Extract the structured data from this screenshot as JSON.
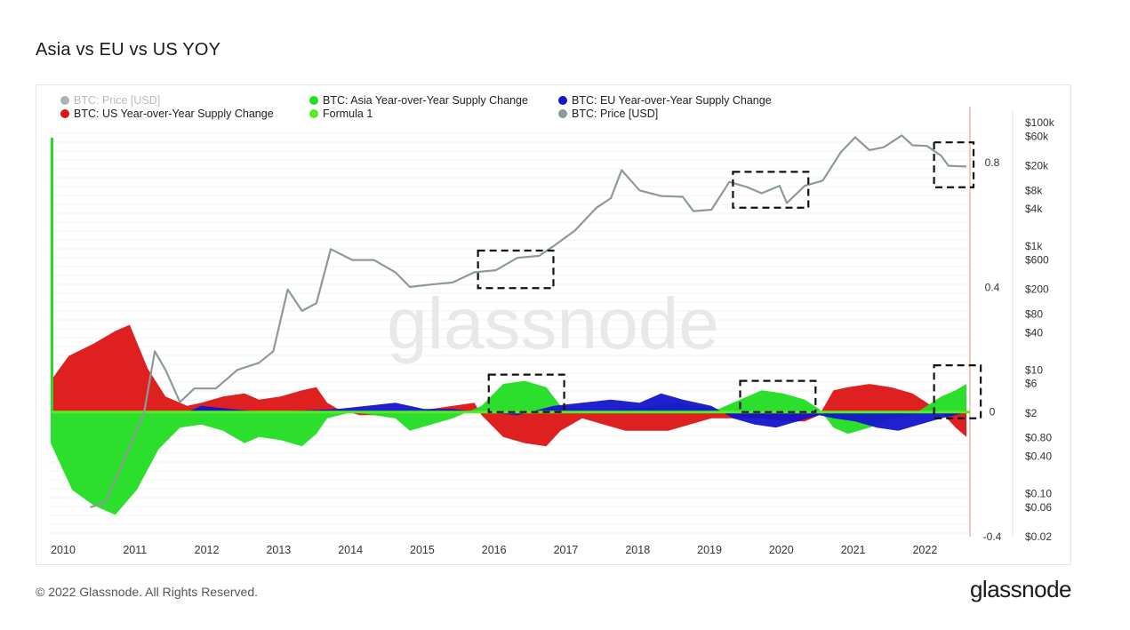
{
  "title": "Asia vs EU vs US YOY",
  "footer": {
    "copyright": "© 2022 Glassnode. All Rights Reserved.",
    "logo": "glassnode"
  },
  "watermark": "glassnode",
  "legend": [
    {
      "label": "BTC: Price [USD]",
      "color": "#aab3b3",
      "muted": true
    },
    {
      "label": "BTC: Asia Year-over-Year Supply Change",
      "color": "#22dd22"
    },
    {
      "label": "BTC: EU Year-over-Year Supply Change",
      "color": "#1414cc"
    },
    {
      "label": "BTC: US Year-over-Year Supply Change",
      "color": "#dd1414"
    },
    {
      "label": "Formula 1",
      "color": "#55ee22"
    },
    {
      "label": "BTC: Price [USD]",
      "color": "#8e9a9a"
    }
  ],
  "chart_data": {
    "type": "area",
    "title": "Asia vs EU vs US YOY",
    "x_ticks": [
      "2010",
      "2011",
      "2012",
      "2013",
      "2014",
      "2015",
      "2016",
      "2017",
      "2018",
      "2019",
      "2020",
      "2021",
      "2022"
    ],
    "x_range": [
      2010.0,
      2022.8
    ],
    "y_left_ticks": [
      {
        "value": 0.8,
        "label": "0.8"
      },
      {
        "value": 0.4,
        "label": "0.4"
      },
      {
        "value": 0,
        "label": "0"
      },
      {
        "value": -0.4,
        "label": "-0.4"
      }
    ],
    "y_left_range": [
      -0.4,
      0.98
    ],
    "y_right_ticks": [
      {
        "value": 100000,
        "label": "$100k"
      },
      {
        "value": 60000,
        "label": "$60k"
      },
      {
        "value": 20000,
        "label": "$20k"
      },
      {
        "value": 8000,
        "label": "$8k"
      },
      {
        "value": 4000,
        "label": "$4k"
      },
      {
        "value": 1000,
        "label": "$1k"
      },
      {
        "value": 600,
        "label": "$600"
      },
      {
        "value": 200,
        "label": "$200"
      },
      {
        "value": 80,
        "label": "$80"
      },
      {
        "value": 40,
        "label": "$40"
      },
      {
        "value": 10,
        "label": "$10"
      },
      {
        "value": 6,
        "label": "$6"
      },
      {
        "value": 2,
        "label": "$2"
      },
      {
        "value": 0.8,
        "label": "$0.80"
      },
      {
        "value": 0.4,
        "label": "$0.40"
      },
      {
        "value": 0.1,
        "label": "$0.10"
      },
      {
        "value": 0.06,
        "label": "$0.06"
      },
      {
        "value": 0.02,
        "label": "$0.02"
      }
    ],
    "y_right_scale": "log",
    "series": [
      {
        "name": "BTC: US Year-over-Year Supply Change",
        "color": "#dd1414",
        "points": [
          [
            2010.0,
            0.1
          ],
          [
            2010.25,
            0.18
          ],
          [
            2010.6,
            0.22
          ],
          [
            2010.9,
            0.26
          ],
          [
            2011.1,
            0.28
          ],
          [
            2011.35,
            0.14
          ],
          [
            2011.6,
            0.05
          ],
          [
            2011.9,
            0.02
          ],
          [
            2012.1,
            0.03
          ],
          [
            2012.4,
            0.05
          ],
          [
            2012.7,
            0.06
          ],
          [
            2012.9,
            0.04
          ],
          [
            2013.2,
            0.05
          ],
          [
            2013.5,
            0.07
          ],
          [
            2013.7,
            0.08
          ],
          [
            2013.85,
            0.03
          ],
          [
            2014.0,
            0.01
          ],
          [
            2014.3,
            -0.01
          ],
          [
            2014.6,
            -0.01
          ],
          [
            2015.0,
            0.0
          ],
          [
            2015.3,
            0.01
          ],
          [
            2015.6,
            0.02
          ],
          [
            2015.9,
            0.03
          ],
          [
            2016.0,
            -0.01
          ],
          [
            2016.3,
            -0.08
          ],
          [
            2016.6,
            -0.1
          ],
          [
            2016.9,
            -0.11
          ],
          [
            2017.1,
            -0.06
          ],
          [
            2017.4,
            -0.02
          ],
          [
            2017.7,
            -0.04
          ],
          [
            2018.0,
            -0.06
          ],
          [
            2018.3,
            -0.06
          ],
          [
            2018.6,
            -0.06
          ],
          [
            2018.9,
            -0.04
          ],
          [
            2019.2,
            -0.02
          ],
          [
            2019.6,
            -0.02
          ],
          [
            2019.9,
            -0.02
          ],
          [
            2020.2,
            -0.03
          ],
          [
            2020.5,
            -0.03
          ],
          [
            2020.7,
            -0.01
          ],
          [
            2020.9,
            0.07
          ],
          [
            2021.1,
            0.08
          ],
          [
            2021.4,
            0.09
          ],
          [
            2021.7,
            0.08
          ],
          [
            2022.0,
            0.06
          ],
          [
            2022.2,
            0.03
          ],
          [
            2022.4,
            0.0
          ],
          [
            2022.6,
            -0.05
          ],
          [
            2022.75,
            -0.08
          ]
        ]
      },
      {
        "name": "BTC: Asia Year-over-Year Supply Change",
        "color": "#22dd22",
        "points": [
          [
            2010.0,
            -0.1
          ],
          [
            2010.3,
            -0.25
          ],
          [
            2010.6,
            -0.3
          ],
          [
            2010.9,
            -0.33
          ],
          [
            2011.2,
            -0.25
          ],
          [
            2011.5,
            -0.12
          ],
          [
            2011.8,
            -0.05
          ],
          [
            2012.1,
            -0.04
          ],
          [
            2012.4,
            -0.06
          ],
          [
            2012.7,
            -0.1
          ],
          [
            2012.9,
            -0.08
          ],
          [
            2013.2,
            -0.09
          ],
          [
            2013.5,
            -0.11
          ],
          [
            2013.7,
            -0.07
          ],
          [
            2013.85,
            -0.02
          ],
          [
            2014.2,
            0.0
          ],
          [
            2014.5,
            -0.01
          ],
          [
            2014.8,
            -0.02
          ],
          [
            2015.0,
            -0.06
          ],
          [
            2015.3,
            -0.04
          ],
          [
            2015.6,
            -0.02
          ],
          [
            2016.0,
            0.02
          ],
          [
            2016.3,
            0.09
          ],
          [
            2016.6,
            0.1
          ],
          [
            2016.9,
            0.08
          ],
          [
            2017.1,
            0.02
          ],
          [
            2017.5,
            0.0
          ],
          [
            2018.0,
            0.01
          ],
          [
            2018.4,
            0.02
          ],
          [
            2018.7,
            0.03
          ],
          [
            2019.0,
            0.02
          ],
          [
            2019.3,
            0.01
          ],
          [
            2019.6,
            0.04
          ],
          [
            2019.9,
            0.07
          ],
          [
            2020.2,
            0.06
          ],
          [
            2020.5,
            0.04
          ],
          [
            2020.7,
            0.01
          ],
          [
            2020.9,
            -0.05
          ],
          [
            2021.1,
            -0.07
          ],
          [
            2021.4,
            -0.05
          ],
          [
            2021.7,
            -0.02
          ],
          [
            2022.0,
            -0.01
          ],
          [
            2022.2,
            0.02
          ],
          [
            2022.4,
            0.05
          ],
          [
            2022.6,
            0.07
          ],
          [
            2022.75,
            0.09
          ]
        ]
      },
      {
        "name": "BTC: EU Year-over-Year Supply Change",
        "color": "#1414cc",
        "points": [
          [
            2010.0,
            0.0
          ],
          [
            2011.9,
            0.0
          ],
          [
            2012.1,
            0.02
          ],
          [
            2012.5,
            0.01
          ],
          [
            2013.0,
            0.0
          ],
          [
            2014.0,
            0.01
          ],
          [
            2014.4,
            0.02
          ],
          [
            2014.8,
            0.03
          ],
          [
            2015.2,
            0.01
          ],
          [
            2015.6,
            0.01
          ],
          [
            2016.0,
            0.0
          ],
          [
            2016.5,
            -0.01
          ],
          [
            2017.0,
            0.02
          ],
          [
            2017.4,
            0.03
          ],
          [
            2017.8,
            0.04
          ],
          [
            2018.2,
            0.03
          ],
          [
            2018.5,
            0.06
          ],
          [
            2018.8,
            0.04
          ],
          [
            2019.2,
            0.02
          ],
          [
            2019.5,
            -0.02
          ],
          [
            2019.8,
            -0.04
          ],
          [
            2020.1,
            -0.05
          ],
          [
            2020.4,
            -0.03
          ],
          [
            2020.7,
            -0.01
          ],
          [
            2020.9,
            -0.02
          ],
          [
            2021.2,
            -0.03
          ],
          [
            2021.5,
            -0.05
          ],
          [
            2021.8,
            -0.06
          ],
          [
            2022.1,
            -0.04
          ],
          [
            2022.4,
            -0.02
          ],
          [
            2022.6,
            -0.01
          ],
          [
            2022.75,
            0.0
          ]
        ]
      },
      {
        "name": "BTC: Price [USD]",
        "color": "#8e9a9a",
        "points": [
          [
            2010.55,
            0.06
          ],
          [
            2010.75,
            0.07
          ],
          [
            2011.0,
            0.3
          ],
          [
            2011.3,
            2
          ],
          [
            2011.45,
            20
          ],
          [
            2011.6,
            10
          ],
          [
            2011.8,
            3
          ],
          [
            2012.0,
            5
          ],
          [
            2012.3,
            5
          ],
          [
            2012.6,
            10
          ],
          [
            2012.9,
            13
          ],
          [
            2013.1,
            20
          ],
          [
            2013.3,
            200
          ],
          [
            2013.5,
            90
          ],
          [
            2013.7,
            120
          ],
          [
            2013.9,
            900
          ],
          [
            2014.2,
            600
          ],
          [
            2014.5,
            600
          ],
          [
            2014.8,
            380
          ],
          [
            2015.0,
            220
          ],
          [
            2015.3,
            240
          ],
          [
            2015.6,
            260
          ],
          [
            2015.9,
            380
          ],
          [
            2016.2,
            410
          ],
          [
            2016.5,
            650
          ],
          [
            2016.8,
            700
          ],
          [
            2017.0,
            1000
          ],
          [
            2017.3,
            1800
          ],
          [
            2017.6,
            4200
          ],
          [
            2017.8,
            6000
          ],
          [
            2017.95,
            17000
          ],
          [
            2018.2,
            8000
          ],
          [
            2018.5,
            6500
          ],
          [
            2018.8,
            6300
          ],
          [
            2018.95,
            3700
          ],
          [
            2019.2,
            3900
          ],
          [
            2019.45,
            11000
          ],
          [
            2019.7,
            9000
          ],
          [
            2019.9,
            7200
          ],
          [
            2020.15,
            9500
          ],
          [
            2020.25,
            5000
          ],
          [
            2020.5,
            9500
          ],
          [
            2020.75,
            11500
          ],
          [
            2021.0,
            33000
          ],
          [
            2021.2,
            58000
          ],
          [
            2021.4,
            36000
          ],
          [
            2021.6,
            40000
          ],
          [
            2021.85,
            62000
          ],
          [
            2022.0,
            43000
          ],
          [
            2022.2,
            42000
          ],
          [
            2022.4,
            29000
          ],
          [
            2022.5,
            20000
          ],
          [
            2022.75,
            19500
          ]
        ]
      }
    ],
    "highlight_boxes": [
      {
        "x_range": [
          2015.95,
          2017.0
        ],
        "price_range": [
          210,
          850
        ]
      },
      {
        "x_range": [
          2019.5,
          2020.55
        ],
        "price_range": [
          4200,
          16000
        ]
      },
      {
        "x_range": [
          2022.3,
          2022.85
        ],
        "price_range": [
          9000,
          48000
        ]
      },
      {
        "x_range": [
          2016.1,
          2017.15
        ],
        "y_range": [
          0.0,
          0.12
        ]
      },
      {
        "x_range": [
          2019.6,
          2020.65
        ],
        "y_range": [
          0.0,
          0.1
        ]
      },
      {
        "x_range": [
          2022.3,
          2022.95
        ],
        "y_range": [
          -0.02,
          0.15
        ]
      }
    ]
  }
}
